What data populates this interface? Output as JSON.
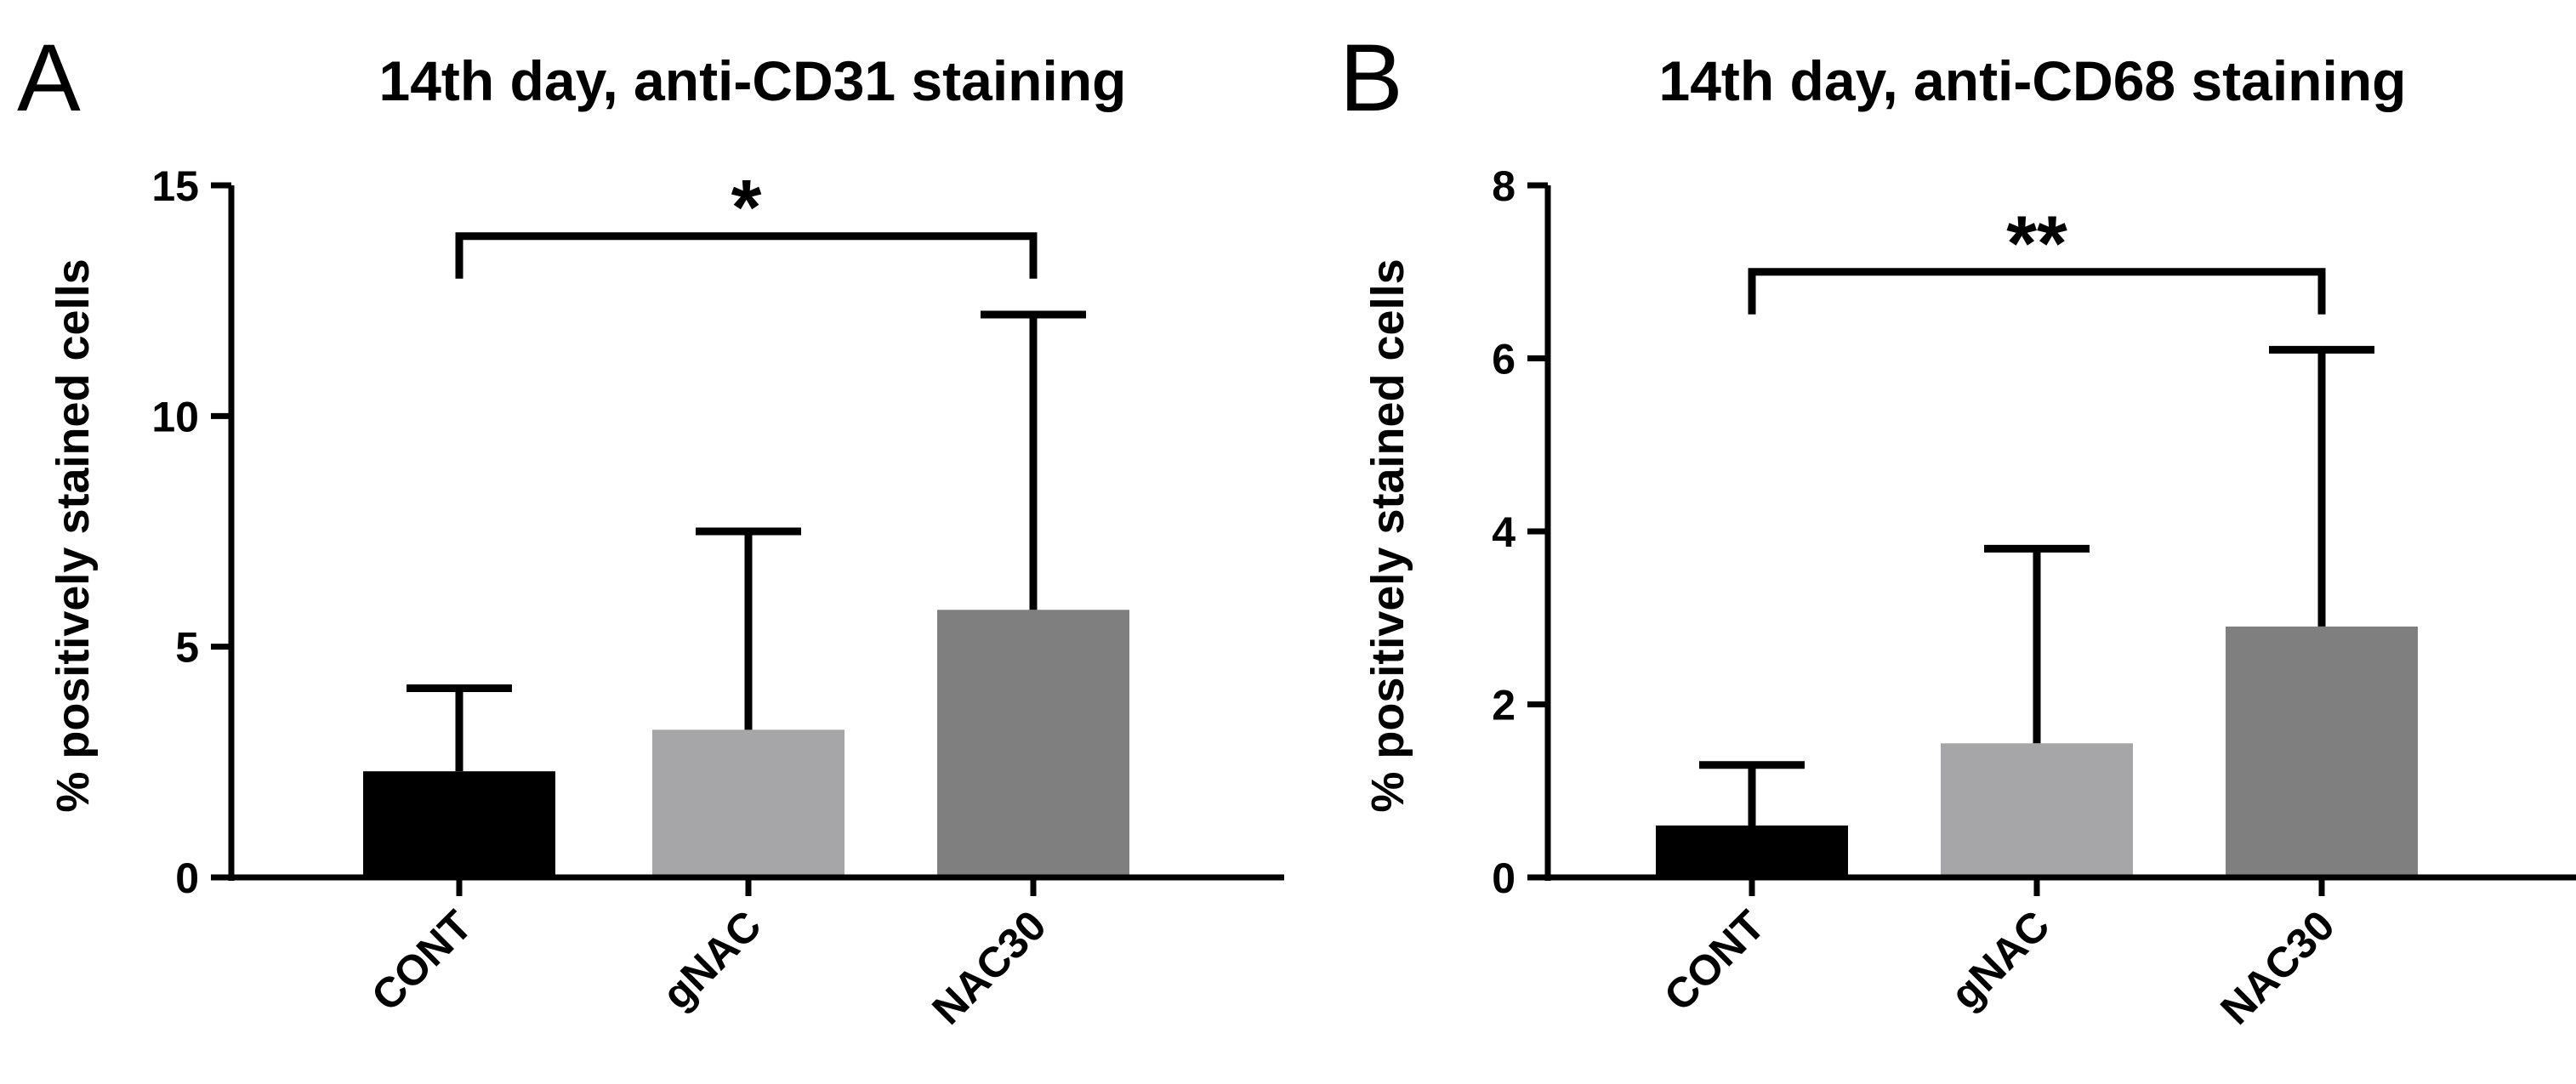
{
  "chart_data": [
    {
      "type": "bar",
      "panel": "A",
      "title": "14th day, anti-CD31 staining",
      "xlabel": "",
      "ylabel": "% positively stained cells",
      "ylim": [
        0,
        15
      ],
      "yticks": [
        0,
        5,
        10,
        15
      ],
      "categories": [
        "CONT",
        "gNAC",
        "NAC30"
      ],
      "values": [
        2.3,
        3.2,
        5.8
      ],
      "error_upper": [
        4.1,
        7.5,
        12.2
      ],
      "bar_colors": [
        "#000000",
        "#a6a6a8",
        "#7f7f7f"
      ],
      "significance": {
        "from": "CONT",
        "to": "NAC30",
        "label": "*",
        "level": 13.9
      }
    },
    {
      "type": "bar",
      "panel": "B",
      "title": "14th day, anti-CD68 staining",
      "xlabel": "",
      "ylabel": "% positively stained cells",
      "ylim": [
        0,
        8
      ],
      "yticks": [
        0,
        2,
        4,
        6,
        8
      ],
      "categories": [
        "CONT",
        "gNAC",
        "NAC30"
      ],
      "values": [
        0.6,
        1.55,
        2.9
      ],
      "error_upper": [
        1.3,
        3.8,
        6.1
      ],
      "bar_colors": [
        "#000000",
        "#a6a6a8",
        "#7f7f7f"
      ],
      "significance": {
        "from": "CONT",
        "to": "NAC30",
        "label": "**",
        "level": 7.0
      }
    }
  ]
}
